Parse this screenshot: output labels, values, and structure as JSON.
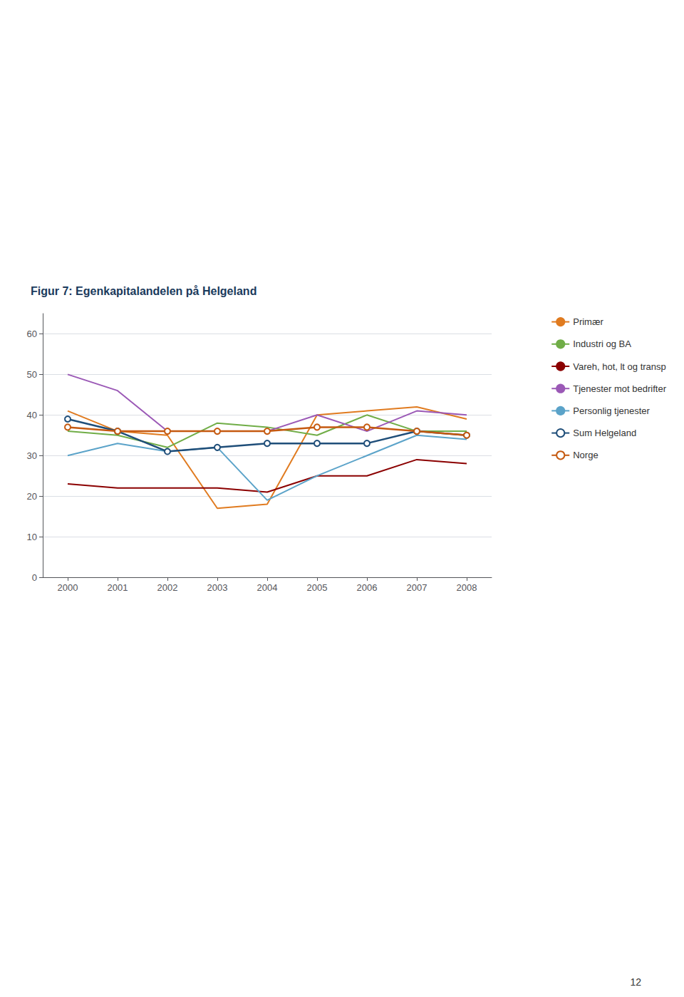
{
  "chart_data": {
    "type": "line",
    "title": "Figur 7: Egenkapitalandelen på Helgeland",
    "title_color": "#1a3a5c",
    "x": [
      2000,
      2001,
      2002,
      2003,
      2004,
      2005,
      2006,
      2007,
      2008
    ],
    "xlim": [
      1999.5,
      2008.5
    ],
    "xticks": [
      2000,
      2001,
      2002,
      2003,
      2004,
      2005,
      2006,
      2007,
      2008
    ],
    "ylim": [
      0,
      65
    ],
    "yticks": [
      0,
      10,
      20,
      30,
      40,
      50,
      60
    ],
    "grid": true,
    "legend": "right",
    "series": [
      {
        "name": "Primær",
        "color": "#e07b20",
        "values": [
          41,
          36,
          35,
          17,
          18,
          40,
          41,
          42,
          39
        ]
      },
      {
        "name": "Industri og BA",
        "color": "#70ad47",
        "values": [
          36,
          35,
          32,
          38,
          37,
          35,
          40,
          36,
          36
        ]
      },
      {
        "name": "Vareh, hot, lt og transp",
        "color": "#8b0000",
        "values": [
          23,
          22,
          22,
          22,
          21,
          25,
          25,
          29,
          28
        ]
      },
      {
        "name": "Tjenester mot bedrifter",
        "color": "#9b59b6",
        "values": [
          50,
          46,
          36,
          36,
          36,
          40,
          36,
          41,
          40
        ]
      },
      {
        "name": "Personlig tjenester",
        "color": "#5ba3c9",
        "values": [
          30,
          33,
          31,
          32,
          19,
          25,
          30,
          35,
          34
        ]
      },
      {
        "name": "Sum Helgeland",
        "color": "#1f4e79",
        "marker": "circle",
        "values": [
          39,
          36,
          31,
          32,
          33,
          33,
          33,
          36,
          35
        ]
      },
      {
        "name": "Norge",
        "color": "#c55a11",
        "marker": "circle",
        "values": [
          37,
          36,
          36,
          36,
          36,
          37,
          37,
          36,
          35
        ]
      }
    ],
    "annotations": [
      "12"
    ]
  }
}
